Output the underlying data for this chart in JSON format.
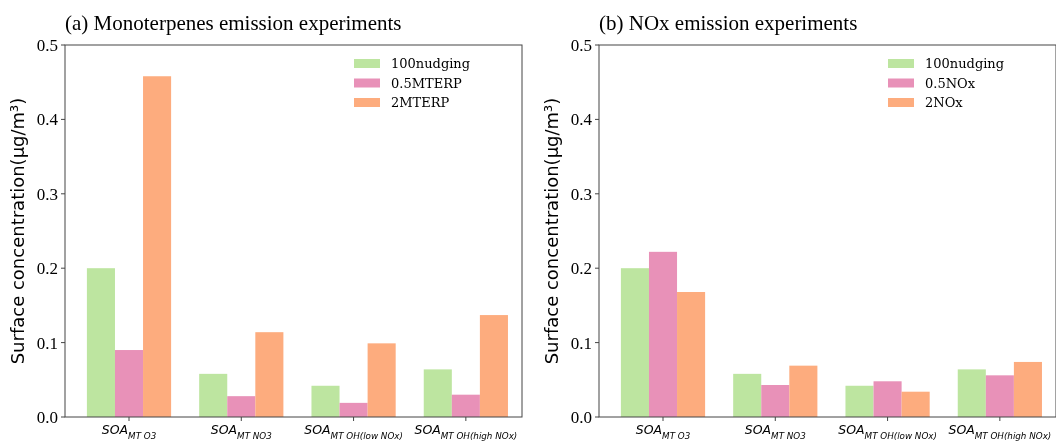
{
  "chart_data": [
    {
      "type": "bar",
      "title": "(a) Monoterpenes emission experiments",
      "ylabel": "Surface concentration(μg/m³)",
      "categories": [
        "SOA$_{MT O3}$",
        "SOA$_{MT NO3}$",
        "SOA$_{MT OH(low NOx)}$",
        "SOA$_{MT OH(high NOx)}$"
      ],
      "series": [
        {
          "name": "100nudging",
          "color": "#bde5a0",
          "values": [
            0.2,
            0.058,
            0.042,
            0.064
          ]
        },
        {
          "name": "0.5MTERP",
          "color": "#e891b8",
          "values": [
            0.09,
            0.028,
            0.019,
            0.03
          ]
        },
        {
          "name": "2MTERP",
          "color": "#fdac7e",
          "values": [
            0.458,
            0.114,
            0.099,
            0.137
          ]
        }
      ],
      "ylim": [
        0,
        0.5
      ],
      "yticks": [
        {
          "value": 0,
          "label": "0.0"
        },
        0.1,
        0.2,
        0.3,
        0.4,
        0.5
      ],
      "legend": "top right",
      "grid": false
    },
    {
      "type": "bar",
      "title": "(b) NOx emission experiments",
      "ylabel": "Surface concentration(μg/m³)",
      "categories": [
        "SOA$_{MT O3}$",
        "SOA$_{MT NO3}$",
        "SOA$_{MT OH(low NOx)}$",
        "SOA$_{MT OH(high NOx)}$"
      ],
      "series": [
        {
          "name": "100nudging",
          "color": "#bde5a0",
          "values": [
            0.2,
            0.058,
            0.042,
            0.064
          ]
        },
        {
          "name": "0.5NOx",
          "color": "#e891b8",
          "values": [
            0.222,
            0.043,
            0.048,
            0.056
          ]
        },
        {
          "name": "2NOx",
          "color": "#fdac7e",
          "values": [
            0.168,
            0.069,
            0.034,
            0.074
          ]
        }
      ],
      "ylim": [
        0,
        0.5
      ],
      "yticks": [
        {
          "value": 0,
          "label": "0.0"
        },
        0.1,
        0.2,
        0.3,
        0.4,
        0.5
      ],
      "legend": "top right",
      "grid": false
    }
  ]
}
